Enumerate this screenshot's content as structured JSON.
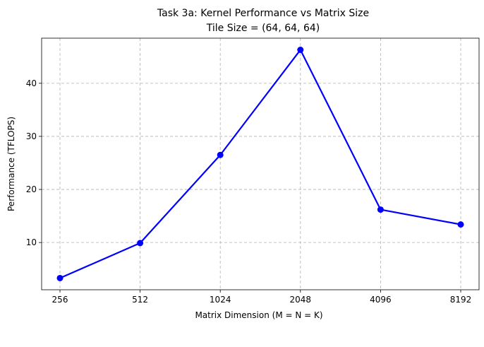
{
  "chart_data": {
    "type": "line",
    "title": "Task 3a: Kernel Performance vs Matrix Size",
    "subtitle": "Tile Size = (64, 64, 64)",
    "xlabel": "Matrix Dimension (M = N = K)",
    "ylabel": "Performance (TFLOPS)",
    "x_scale": "categorical",
    "categories": [
      "256",
      "512",
      "1024",
      "2048",
      "4096",
      "8192"
    ],
    "series": [
      {
        "values": [
          3.3,
          9.9,
          26.5,
          46.3,
          16.2,
          13.4
        ],
        "color": "#0000ff",
        "marker": "circle"
      }
    ],
    "ylim": [
      1.1,
      48.5
    ],
    "yticks": [
      10,
      20,
      30,
      40
    ],
    "grid": true,
    "legend": "none"
  }
}
